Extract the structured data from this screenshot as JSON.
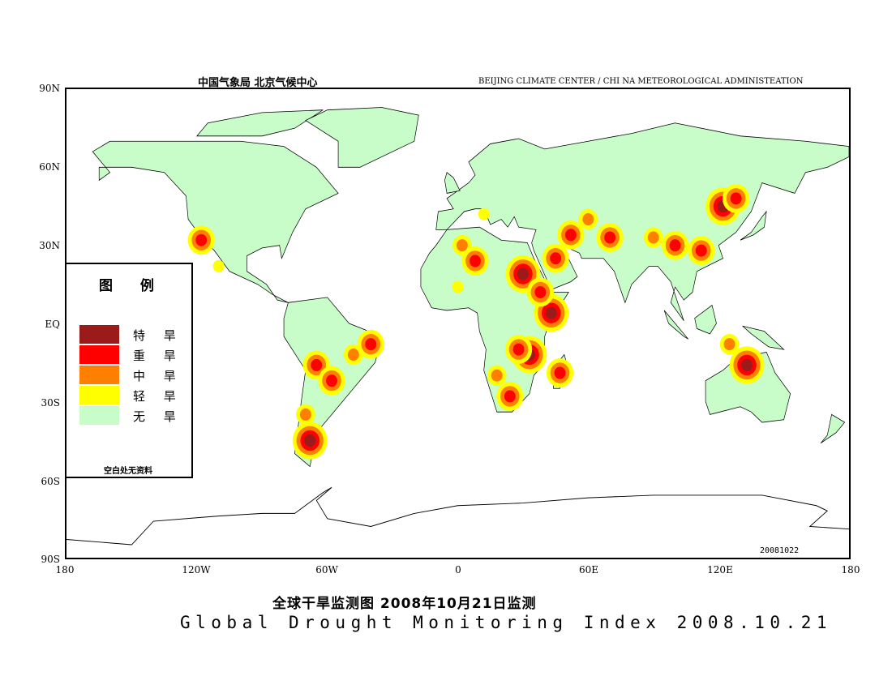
{
  "header": {
    "cn": "中国气象局   北京气候中心",
    "en": "BEIJING CLIMATE CENTER / CHI NA METEOROLOGICAL ADMINISTEATION"
  },
  "axes": {
    "lat_labels": [
      "90N",
      "60N",
      "30N",
      "EQ",
      "30S",
      "60S",
      "90S"
    ],
    "lon_labels": [
      "180",
      "120W",
      "60W",
      "0",
      "60E",
      "120E",
      "180"
    ]
  },
  "stamp": "20081022",
  "title_cn": "全球干旱监测图    2008年10月21日监测",
  "title_en": "Global Drought Monitoring Index  2008.10.21",
  "legend": {
    "title": "图 例",
    "items": [
      {
        "label": "特 旱",
        "color": "#9b1a1a"
      },
      {
        "label": "重 旱",
        "color": "#ff0000"
      },
      {
        "label": "中 旱",
        "color": "#ff8000"
      },
      {
        "label": "轻 旱",
        "color": "#ffff00"
      },
      {
        "label": "无 旱",
        "color": "#c8fcc8"
      }
    ],
    "note": "空白处无资料"
  },
  "drought_areas": [
    {
      "lon": 43,
      "lat": 4,
      "level": 4
    },
    {
      "lon": 33,
      "lat": -12,
      "level": 4
    },
    {
      "lon": 28,
      "lat": -10,
      "level": 3
    },
    {
      "lon": 47,
      "lat": -19,
      "level": 3
    },
    {
      "lon": 24,
      "lat": -28,
      "level": 3
    },
    {
      "lon": 18,
      "lat": -20,
      "level": 2
    },
    {
      "lon": 8,
      "lat": 24,
      "level": 3
    },
    {
      "lon": 2,
      "lat": 30,
      "level": 2
    },
    {
      "lon": 0,
      "lat": 14,
      "level": 1
    },
    {
      "lon": 30,
      "lat": 19,
      "level": 4
    },
    {
      "lon": 38,
      "lat": 12,
      "level": 3
    },
    {
      "lon": 45,
      "lat": 25,
      "level": 3
    },
    {
      "lon": 52,
      "lat": 34,
      "level": 3
    },
    {
      "lon": 60,
      "lat": 40,
      "level": 2
    },
    {
      "lon": 70,
      "lat": 33,
      "level": 3
    },
    {
      "lon": 90,
      "lat": 33,
      "level": 2
    },
    {
      "lon": 100,
      "lat": 30,
      "level": 3
    },
    {
      "lon": 112,
      "lat": 28,
      "level": 3
    },
    {
      "lon": 122,
      "lat": 45,
      "level": 4
    },
    {
      "lon": 128,
      "lat": 48,
      "level": 3
    },
    {
      "lon": 133,
      "lat": -16,
      "level": 4
    },
    {
      "lon": -40,
      "lat": -8,
      "level": 3
    },
    {
      "lon": -48,
      "lat": -12,
      "level": 2
    },
    {
      "lon": -65,
      "lat": -16,
      "level": 3
    },
    {
      "lon": -58,
      "lat": -22,
      "level": 3
    },
    {
      "lon": -68,
      "lat": -45,
      "level": 4
    },
    {
      "lon": -70,
      "lat": -35,
      "level": 2
    },
    {
      "lon": -118,
      "lat": 32,
      "level": 3
    },
    {
      "lon": -110,
      "lat": 22,
      "level": 1
    },
    {
      "lon": 12,
      "lat": 42,
      "level": 1
    },
    {
      "lon": 125,
      "lat": -8,
      "level": 2
    }
  ]
}
